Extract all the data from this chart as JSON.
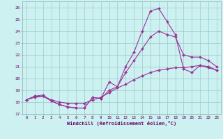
{
  "xlabel": "Windchill (Refroidissement éolien,°C)",
  "bg_color": "#cdf0f0",
  "grid_color": "#99cccc",
  "line_color": "#993399",
  "x_ticks": [
    0,
    1,
    2,
    3,
    4,
    5,
    6,
    7,
    8,
    9,
    10,
    11,
    12,
    13,
    14,
    15,
    16,
    17,
    18,
    19,
    20,
    21,
    22,
    23
  ],
  "ylim": [
    17,
    26.5
  ],
  "xlim": [
    -0.5,
    23.5
  ],
  "yticks": [
    17,
    18,
    19,
    20,
    21,
    22,
    23,
    24,
    25,
    26
  ],
  "line1_x": [
    0,
    1,
    2,
    3,
    4,
    5,
    6,
    7,
    8,
    9,
    10,
    11,
    12,
    13,
    14,
    15,
    16,
    17,
    18,
    19,
    20,
    21,
    22,
    23
  ],
  "line1_y": [
    18.2,
    18.5,
    18.6,
    18.1,
    17.8,
    17.6,
    17.5,
    17.5,
    18.4,
    18.3,
    19.7,
    19.3,
    21.0,
    22.2,
    24.0,
    25.7,
    25.9,
    24.8,
    23.7,
    20.8,
    20.5,
    21.1,
    21.0,
    20.7
  ],
  "line2_x": [
    0,
    1,
    2,
    3,
    4,
    5,
    6,
    7,
    8,
    9,
    10,
    11,
    12,
    13,
    14,
    15,
    16,
    17,
    18,
    19,
    20,
    21,
    22,
    23
  ],
  "line2_y": [
    18.2,
    18.5,
    18.5,
    18.1,
    17.8,
    17.6,
    17.5,
    17.5,
    18.4,
    18.3,
    19.0,
    19.3,
    20.5,
    21.5,
    22.5,
    23.5,
    24.0,
    23.7,
    23.5,
    22.0,
    21.8,
    21.8,
    21.5,
    21.0
  ],
  "line3_x": [
    0,
    1,
    2,
    3,
    4,
    5,
    6,
    7,
    8,
    9,
    10,
    11,
    12,
    13,
    14,
    15,
    16,
    17,
    18,
    19,
    20,
    21,
    22,
    23
  ],
  "line3_y": [
    18.2,
    18.4,
    18.5,
    18.2,
    18.0,
    17.9,
    17.9,
    17.9,
    18.2,
    18.4,
    18.8,
    19.2,
    19.5,
    19.9,
    20.2,
    20.5,
    20.7,
    20.8,
    20.9,
    20.9,
    21.0,
    21.1,
    20.9,
    20.7
  ],
  "tick_fontsize": 4.2,
  "xlabel_fontsize": 5.0
}
